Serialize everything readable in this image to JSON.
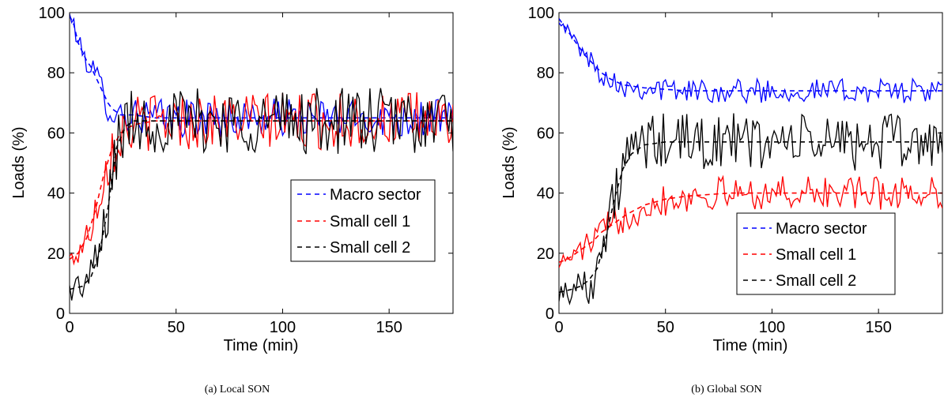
{
  "charts": [
    {
      "caption": "(a) Local SON",
      "chart_data": {
        "type": "line",
        "xlabel": "Time (min)",
        "ylabel": "Loads (%)",
        "xlim": [
          0,
          180
        ],
        "ylim": [
          0,
          100
        ],
        "xticks": [
          0,
          50,
          100,
          150
        ],
        "yticks": [
          0,
          20,
          40,
          60,
          80,
          100
        ],
        "grid": false,
        "legend_position": "center-right",
        "series": [
          {
            "name": "Macro sector",
            "color": "#0000ff",
            "curve": "smooth",
            "points": [
              [
                0,
                99
              ],
              [
                2,
                96
              ],
              [
                4,
                90
              ],
              [
                6,
                87
              ],
              [
                8,
                84
              ],
              [
                10,
                82
              ],
              [
                12,
                79
              ],
              [
                14,
                76
              ],
              [
                16,
                73
              ],
              [
                18,
                70
              ],
              [
                20,
                68
              ],
              [
                22,
                67
              ],
              [
                24,
                66
              ],
              [
                26,
                66
              ],
              [
                30,
                66
              ],
              [
                40,
                65
              ],
              [
                60,
                65
              ],
              [
                80,
                65
              ],
              [
                100,
                65
              ],
              [
                120,
                65
              ],
              [
                140,
                65
              ],
              [
                160,
                65
              ],
              [
                180,
                65
              ]
            ]
          },
          {
            "name": "Small cell 1",
            "color": "#ff0000",
            "curve": "smooth",
            "points": [
              [
                0,
                18
              ],
              [
                4,
                20
              ],
              [
                8,
                25
              ],
              [
                12,
                34
              ],
              [
                16,
                46
              ],
              [
                20,
                55
              ],
              [
                24,
                60
              ],
              [
                28,
                62
              ],
              [
                32,
                63
              ],
              [
                40,
                64
              ],
              [
                60,
                64
              ],
              [
                80,
                64
              ],
              [
                100,
                64
              ],
              [
                120,
                64
              ],
              [
                140,
                64
              ],
              [
                160,
                64
              ],
              [
                180,
                64
              ]
            ]
          },
          {
            "name": "Small cell 2",
            "color": "#000000",
            "curve": "sigmoid",
            "points": [
              [
                0,
                8
              ],
              [
                6,
                9
              ],
              [
                10,
                12
              ],
              [
                14,
                20
              ],
              [
                18,
                35
              ],
              [
                22,
                55
              ],
              [
                26,
                62
              ],
              [
                30,
                64
              ],
              [
                40,
                64
              ],
              [
                60,
                64
              ],
              [
                80,
                64
              ],
              [
                100,
                64
              ],
              [
                120,
                64
              ],
              [
                140,
                64
              ],
              [
                160,
                64
              ],
              [
                180,
                64
              ]
            ]
          }
        ]
      }
    },
    {
      "caption": "(b) Global SON",
      "chart_data": {
        "type": "line",
        "xlabel": "Time (min)",
        "ylabel": "Loads (%)",
        "xlim": [
          0,
          180
        ],
        "ylim": [
          0,
          100
        ],
        "xticks": [
          0,
          50,
          100,
          150
        ],
        "yticks": [
          0,
          20,
          40,
          60,
          80,
          100
        ],
        "grid": false,
        "legend_position": "bottom-center",
        "series": [
          {
            "name": "Macro sector",
            "color": "#0000ff",
            "curve": "smooth",
            "points": [
              [
                0,
                98
              ],
              [
                4,
                94
              ],
              [
                8,
                90
              ],
              [
                12,
                86
              ],
              [
                16,
                83
              ],
              [
                20,
                80
              ],
              [
                24,
                78
              ],
              [
                30,
                76
              ],
              [
                40,
                75
              ],
              [
                60,
                74
              ],
              [
                80,
                74
              ],
              [
                100,
                74
              ],
              [
                120,
                74
              ],
              [
                140,
                74
              ],
              [
                160,
                74
              ],
              [
                180,
                74
              ]
            ]
          },
          {
            "name": "Small cell 1",
            "color": "#ff0000",
            "curve": "smooth",
            "points": [
              [
                0,
                17
              ],
              [
                4,
                18
              ],
              [
                8,
                20
              ],
              [
                12,
                22
              ],
              [
                16,
                24
              ],
              [
                20,
                27
              ],
              [
                26,
                30
              ],
              [
                32,
                33
              ],
              [
                40,
                36
              ],
              [
                50,
                38
              ],
              [
                60,
                39
              ],
              [
                80,
                40
              ],
              [
                100,
                40
              ],
              [
                120,
                40
              ],
              [
                140,
                40
              ],
              [
                160,
                40
              ],
              [
                180,
                40
              ]
            ]
          },
          {
            "name": "Small cell 2",
            "color": "#000000",
            "curve": "sigmoid",
            "points": [
              [
                0,
                7
              ],
              [
                6,
                8
              ],
              [
                10,
                9
              ],
              [
                14,
                11
              ],
              [
                18,
                15
              ],
              [
                22,
                25
              ],
              [
                26,
                38
              ],
              [
                30,
                48
              ],
              [
                34,
                53
              ],
              [
                40,
                56
              ],
              [
                50,
                57
              ],
              [
                60,
                57
              ],
              [
                80,
                57
              ],
              [
                100,
                57
              ],
              [
                120,
                57
              ],
              [
                140,
                57
              ],
              [
                160,
                57
              ],
              [
                180,
                57
              ]
            ]
          }
        ]
      }
    }
  ]
}
